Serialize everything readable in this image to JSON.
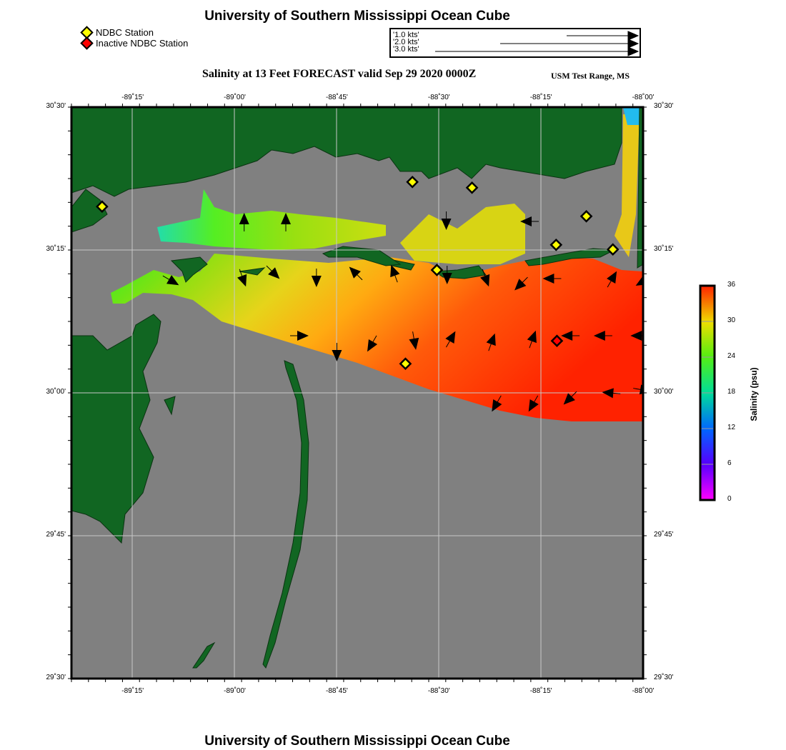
{
  "header": {
    "title": "University of Southern Mississippi Ocean Cube",
    "subtitle": "Salinity at 13 Feet FORECAST valid Sep 29 2020 0000Z",
    "region": "USM Test Range, MS",
    "footer": "University of Southern Mississippi Ocean Cube"
  },
  "legend": {
    "items": [
      {
        "label": "NDBC Station",
        "color": "#ffff00"
      },
      {
        "label": "Inactive NDBC Station",
        "color": "#ff0000"
      }
    ],
    "vector_scale": [
      "'1.0 kts'",
      "'2.0 kts'",
      "'3.0 kts'"
    ]
  },
  "axes": {
    "lon_ticks": [
      "-89˚15'",
      "-89˚00'",
      "-88˚45'",
      "-88˚30'",
      "-88˚15'",
      "-88˚00'"
    ],
    "lon_values": [
      -89.25,
      -89.0,
      -88.75,
      -88.5,
      -88.25,
      -88.0
    ],
    "lat_ticks": [
      "30˚30'",
      "30˚15'",
      "30˚00'",
      "29˚45'",
      "29˚30'"
    ],
    "lat_values": [
      30.5,
      30.25,
      30.0,
      29.75,
      29.5
    ],
    "lon_range": [
      -89.4,
      -88.0
    ],
    "lat_range": [
      29.5,
      30.5
    ]
  },
  "colorbar": {
    "label": "Salinity (psu)",
    "ticks": [
      "36",
      "30",
      "24",
      "18",
      "12",
      "6",
      "0"
    ],
    "range": [
      0,
      36
    ]
  },
  "stations": [
    {
      "lon": -89.325,
      "lat": 30.326,
      "status": "active"
    },
    {
      "lon": -88.565,
      "lat": 30.369,
      "status": "active"
    },
    {
      "lon": -88.419,
      "lat": 30.359,
      "status": "active"
    },
    {
      "lon": -88.505,
      "lat": 30.215,
      "status": "active"
    },
    {
      "lon": -88.213,
      "lat": 30.259,
      "status": "active"
    },
    {
      "lon": -88.139,
      "lat": 30.309,
      "status": "active"
    },
    {
      "lon": -88.074,
      "lat": 30.251,
      "status": "active"
    },
    {
      "lon": -88.582,
      "lat": 30.051,
      "status": "active"
    },
    {
      "lon": -88.211,
      "lat": 30.091,
      "status": "inactive"
    }
  ],
  "vectors": [
    {
      "lon": -88.977,
      "lat": 30.3,
      "heading": 0
    },
    {
      "lon": -88.875,
      "lat": 30.3,
      "heading": 0
    },
    {
      "lon": -88.482,
      "lat": 30.3,
      "heading": 180
    },
    {
      "lon": -88.28,
      "lat": 30.3,
      "heading": 270
    },
    {
      "lon": -89.155,
      "lat": 30.196,
      "heading": 120
    },
    {
      "lon": -88.98,
      "lat": 30.2,
      "heading": 160
    },
    {
      "lon": -88.905,
      "lat": 30.21,
      "heading": 135
    },
    {
      "lon": -88.8,
      "lat": 30.2,
      "heading": 180
    },
    {
      "lon": -88.705,
      "lat": 30.21,
      "heading": 315
    },
    {
      "lon": -88.61,
      "lat": 30.21,
      "heading": 340
    },
    {
      "lon": -88.48,
      "lat": 30.205,
      "heading": 180
    },
    {
      "lon": -88.385,
      "lat": 30.2,
      "heading": 160
    },
    {
      "lon": -88.3,
      "lat": 30.19,
      "heading": 225
    },
    {
      "lon": -88.225,
      "lat": 30.2,
      "heading": 270
    },
    {
      "lon": -88.075,
      "lat": 30.2,
      "heading": 30
    },
    {
      "lon": -88.0,
      "lat": 30.195,
      "heading": 240
    },
    {
      "lon": -88.84,
      "lat": 30.1,
      "heading": 90
    },
    {
      "lon": -88.75,
      "lat": 30.07,
      "heading": 180
    },
    {
      "lon": -88.665,
      "lat": 30.085,
      "heading": 210
    },
    {
      "lon": -88.56,
      "lat": 30.09,
      "heading": 170
    },
    {
      "lon": -88.47,
      "lat": 30.095,
      "heading": 30
    },
    {
      "lon": -88.37,
      "lat": 30.09,
      "heading": 20
    },
    {
      "lon": -88.27,
      "lat": 30.095,
      "heading": 20
    },
    {
      "lon": -88.18,
      "lat": 30.1,
      "heading": 270
    },
    {
      "lon": -88.1,
      "lat": 30.1,
      "heading": 270
    },
    {
      "lon": -88.01,
      "lat": 30.1,
      "heading": 270
    },
    {
      "lon": -88.36,
      "lat": 29.98,
      "heading": 210
    },
    {
      "lon": -88.27,
      "lat": 29.98,
      "heading": 210
    },
    {
      "lon": -88.18,
      "lat": 29.99,
      "heading": 225
    },
    {
      "lon": -88.08,
      "lat": 30.0,
      "heading": 275
    },
    {
      "lon": -88.0,
      "lat": 30.005,
      "heading": 100
    }
  ]
}
